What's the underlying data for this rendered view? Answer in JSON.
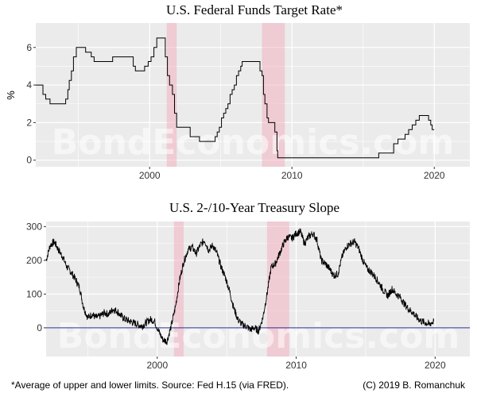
{
  "chart_data": [
    {
      "type": "line",
      "title": "U.S. Federal Funds Target Rate*",
      "xlabel": "",
      "ylabel": "%",
      "xlim": [
        1992.0,
        2022.5
      ],
      "ylim": [
        -0.35,
        7.3
      ],
      "x_ticks": [
        2000,
        2010,
        2020
      ],
      "x_tick_labels": [
        "2000",
        "2010",
        "2020"
      ],
      "y_ticks": [
        0,
        2,
        4,
        6
      ],
      "y_tick_labels": [
        "0",
        "2",
        "4",
        "6"
      ],
      "recessions": [
        [
          2001.2,
          2001.9
        ],
        [
          2007.9,
          2009.5
        ]
      ],
      "watermark": "BondEconomics.com",
      "series": [
        {
          "name": "Federal Funds Target Rate",
          "x": [
            1992.0,
            1992.5,
            1992.7,
            1993.0,
            1994.0,
            1994.1,
            1994.25,
            1994.35,
            1994.5,
            1994.65,
            1994.85,
            1995.05,
            1995.5,
            1995.9,
            1996.1,
            1997.2,
            1997.4,
            1998.7,
            1998.85,
            1999.0,
            1999.5,
            1999.65,
            1999.9,
            2000.1,
            2000.3,
            2000.5,
            2001.0,
            2001.1,
            2001.25,
            2001.4,
            2001.6,
            2001.75,
            2001.9,
            2002.0,
            2002.85,
            2003.0,
            2003.5,
            2004.0,
            2004.5,
            2004.6,
            2004.75,
            2004.9,
            2005.05,
            2005.2,
            2005.35,
            2005.5,
            2005.65,
            2005.8,
            2005.95,
            2006.1,
            2006.25,
            2006.4,
            2006.5,
            2007.6,
            2007.75,
            2007.9,
            2008.0,
            2008.1,
            2008.25,
            2008.35,
            2008.8,
            2008.95,
            2009.0,
            2015.9,
            2016.1,
            2016.95,
            2017.15,
            2017.45,
            2017.95,
            2018.2,
            2018.45,
            2018.7,
            2018.95,
            2019.5,
            2019.6,
            2019.75,
            2019.85,
            2020.0
          ],
          "y": [
            4.0,
            3.5,
            3.25,
            3.0,
            3.0,
            3.25,
            3.75,
            4.25,
            4.75,
            5.5,
            6.0,
            6.0,
            5.75,
            5.5,
            5.25,
            5.25,
            5.5,
            5.5,
            5.0,
            4.75,
            4.75,
            5.0,
            5.25,
            5.5,
            6.0,
            6.5,
            6.5,
            5.5,
            4.5,
            4.0,
            3.5,
            2.5,
            1.75,
            1.75,
            1.25,
            1.25,
            1.0,
            1.0,
            1.0,
            1.25,
            1.5,
            1.75,
            2.25,
            2.5,
            2.75,
            3.0,
            3.5,
            3.75,
            4.0,
            4.5,
            4.75,
            5.0,
            5.25,
            5.25,
            4.75,
            4.5,
            3.5,
            3.0,
            2.25,
            2.0,
            1.5,
            0.5,
            0.125,
            0.125,
            0.375,
            0.375,
            0.875,
            1.125,
            1.375,
            1.625,
            1.875,
            2.125,
            2.375,
            2.375,
            2.125,
            1.875,
            1.625,
            1.625
          ]
        }
      ]
    },
    {
      "type": "line",
      "title": "U.S. 2-/10-Year Treasury Slope",
      "xlabel": "",
      "ylabel": "",
      "xlim": [
        1992.0,
        2022.5
      ],
      "ylim": [
        -85,
        315
      ],
      "x_ticks": [
        2000,
        2010,
        2020
      ],
      "x_tick_labels": [
        "2000",
        "2010",
        "2020"
      ],
      "y_ticks": [
        0,
        100,
        200,
        300
      ],
      "y_tick_labels": [
        "0",
        "100",
        "200",
        "300"
      ],
      "reference_line": 0,
      "recessions": [
        [
          2001.2,
          2001.9
        ],
        [
          2007.9,
          2009.5
        ]
      ],
      "watermark": "BondEconomics.com",
      "series": [
        {
          "name": "2-/10-Year Treasury Slope",
          "x": [
            1992.0,
            1992.3,
            1992.6,
            1992.9,
            1993.2,
            1993.5,
            1993.8,
            1994.1,
            1994.4,
            1994.7,
            1995.0,
            1995.3,
            1995.6,
            1995.9,
            1996.2,
            1996.5,
            1996.8,
            1997.1,
            1997.4,
            1997.7,
            1998.0,
            1998.3,
            1998.6,
            1998.9,
            1999.2,
            1999.5,
            1999.8,
            2000.1,
            2000.4,
            2000.7,
            2001.0,
            2001.3,
            2001.6,
            2001.9,
            2002.2,
            2002.5,
            2002.8,
            2003.1,
            2003.4,
            2003.7,
            2004.0,
            2004.3,
            2004.6,
            2004.9,
            2005.2,
            2005.5,
            2005.8,
            2006.1,
            2006.4,
            2006.7,
            2007.0,
            2007.3,
            2007.6,
            2007.9,
            2008.2,
            2008.5,
            2008.8,
            2009.1,
            2009.4,
            2009.7,
            2010.0,
            2010.3,
            2010.6,
            2010.9,
            2011.2,
            2011.5,
            2011.8,
            2012.1,
            2012.4,
            2012.7,
            2013.0,
            2013.3,
            2013.6,
            2013.9,
            2014.2,
            2014.5,
            2014.8,
            2015.1,
            2015.4,
            2015.7,
            2016.0,
            2016.3,
            2016.6,
            2016.9,
            2017.2,
            2017.5,
            2017.8,
            2018.1,
            2018.4,
            2018.7,
            2019.0,
            2019.3,
            2019.6,
            2019.9
          ],
          "y": [
            200,
            245,
            255,
            230,
            210,
            180,
            165,
            145,
            120,
            60,
            30,
            40,
            30,
            35,
            45,
            40,
            55,
            50,
            35,
            25,
            20,
            15,
            10,
            5,
            15,
            25,
            20,
            -10,
            -35,
            -40,
            5,
            60,
            140,
            195,
            230,
            240,
            220,
            245,
            260,
            230,
            245,
            220,
            180,
            150,
            110,
            60,
            25,
            10,
            5,
            -5,
            0,
            -10,
            30,
            100,
            180,
            190,
            220,
            250,
            270,
            265,
            280,
            285,
            250,
            270,
            280,
            260,
            200,
            190,
            175,
            155,
            160,
            210,
            240,
            250,
            255,
            235,
            200,
            175,
            165,
            150,
            130,
            110,
            95,
            115,
            100,
            90,
            70,
            55,
            45,
            30,
            20,
            15,
            10,
            20
          ]
        }
      ]
    }
  ],
  "footer": {
    "left": "*Average of upper and lower limits. Source: Fed H.15 (via FRED).",
    "right": "(C) 2019 B. Romanchuk"
  }
}
